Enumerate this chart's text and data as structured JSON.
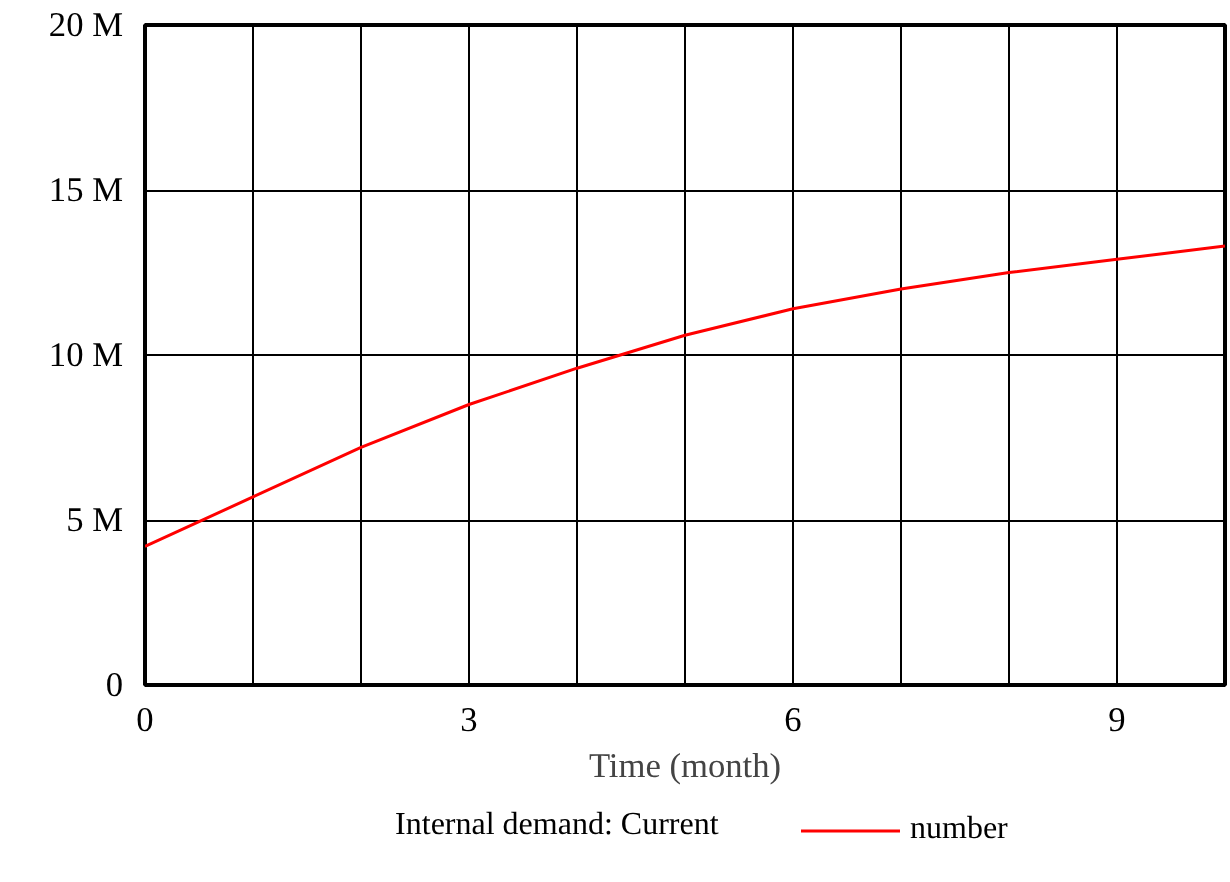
{
  "chart_data": {
    "type": "line",
    "xlabel": "Time (month)",
    "legend_title": "Internal demand: Current",
    "x": [
      0,
      1,
      2,
      3,
      4,
      5,
      6,
      7,
      8,
      9,
      10
    ],
    "series": [
      {
        "name": "number",
        "color": "#ff0000",
        "values": [
          4200000,
          5700000,
          7200000,
          8500000,
          9600000,
          10600000,
          11400000,
          12000000,
          12500000,
          12900000,
          13300000
        ]
      }
    ],
    "xlim": [
      0,
      10
    ],
    "xticks": [
      0,
      {
        "value": 1,
        "label": null
      },
      {
        "value": 2,
        "label": null
      },
      3,
      {
        "value": 4,
        "label": null
      },
      {
        "value": 5,
        "label": null
      },
      6,
      {
        "value": 7,
        "label": null
      },
      {
        "value": 8,
        "label": null
      },
      9,
      {
        "value": 10,
        "label": null
      }
    ],
    "ylim": [
      0,
      20000000
    ],
    "yticks": [
      {
        "value": 0,
        "label": "0"
      },
      {
        "value": 5000000,
        "label": "5 M"
      },
      {
        "value": 10000000,
        "label": "10 M"
      },
      {
        "value": 15000000,
        "label": "15 M"
      },
      {
        "value": 20000000,
        "label": "20 M"
      }
    ],
    "grid": true,
    "legend": "bottom"
  }
}
